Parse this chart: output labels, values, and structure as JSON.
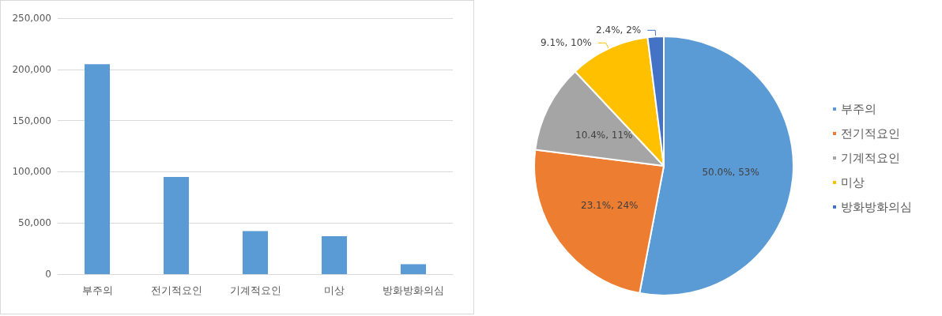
{
  "chart_data": [
    {
      "type": "bar",
      "categories": [
        "부주의",
        "전기적요인",
        "기계적요인",
        "미상",
        "방화방화의심"
      ],
      "values": [
        205000,
        95000,
        42000,
        37000,
        9700
      ],
      "color": "#5b9bd5",
      "ylim": [
        0,
        250000
      ],
      "yticks": [
        {
          "value": 0,
          "label": "0"
        },
        {
          "value": 50000,
          "label": "50,000"
        },
        {
          "value": 100000,
          "label": "100,000"
        },
        {
          "value": 150000,
          "label": "150,000"
        },
        {
          "value": 200000,
          "label": "200,000"
        },
        {
          "value": 250000,
          "label": "250,000"
        }
      ],
      "grid": "y"
    },
    {
      "type": "pie",
      "categories": [
        "부주의",
        "전기적요인",
        "기계적요인",
        "미상",
        "방화방화의심"
      ],
      "values": [
        53,
        24,
        11,
        10,
        2
      ],
      "colors": [
        "#5b9bd5",
        "#ed7d31",
        "#a5a5a5",
        "#ffc000",
        "#4472c4"
      ],
      "value_labels": [
        "50.0%, 53%",
        "23.1%, 24%",
        "10.4%, 11%",
        "9.1%, 10%",
        "2.4%, 2%"
      ],
      "legend": "right"
    }
  ]
}
